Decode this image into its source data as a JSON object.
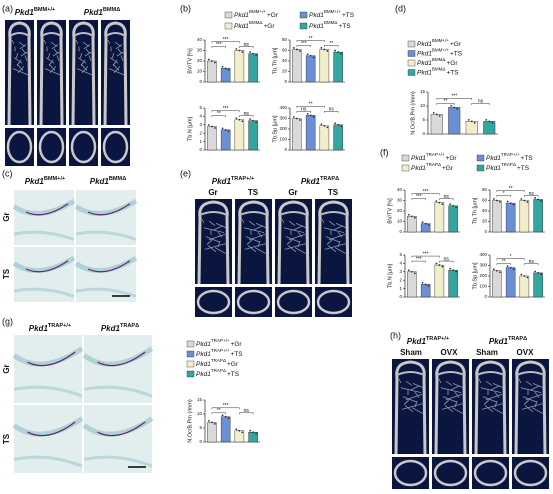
{
  "panels": {
    "a": {
      "label": "(a)",
      "headers": [
        {
          "gene": "Pkd1",
          "sup": "BMM+/+"
        },
        {
          "gene": "Pkd1",
          "sup": "BMMΔ"
        }
      ]
    },
    "b": {
      "label": "(b)",
      "legend": [
        {
          "gene": "Pkd1",
          "sup": "BMM+/+",
          "suffix": "+Gr"
        },
        {
          "gene": "Pkd1",
          "sup": "BMM+/+",
          "suffix": "+TS"
        },
        {
          "gene": "Pkd1",
          "sup": "BMMΔ",
          "suffix": "+Gr"
        },
        {
          "gene": "Pkd1",
          "sup": "BMMΔ",
          "suffix": "+TS"
        }
      ]
    },
    "c": {
      "label": "(c)",
      "headers": [
        {
          "gene": "Pkd1",
          "sup": "BMM+/+"
        },
        {
          "gene": "Pkd1",
          "sup": "BMMΔ"
        }
      ],
      "rows": [
        "Gr",
        "TS"
      ]
    },
    "d": {
      "label": "(d)",
      "legend": [
        {
          "gene": "Pkd1",
          "sup": "BMM+/+",
          "suffix": "+Gr"
        },
        {
          "gene": "Pkd1",
          "sup": "BMM+/+",
          "suffix": "+TS"
        },
        {
          "gene": "Pkd1",
          "sup": "BMMΔ",
          "suffix": "+Gr"
        },
        {
          "gene": "Pkd1",
          "sup": "BMMΔ",
          "suffix": "+TS"
        }
      ]
    },
    "e": {
      "label": "(e)",
      "headers": [
        {
          "gene": "Pkd1",
          "sup": "TRAP+/+"
        },
        {
          "gene": "Pkd1",
          "sup": "TRAPΔ"
        }
      ],
      "columns": [
        "Gr",
        "TS",
        "Gr",
        "TS"
      ]
    },
    "f": {
      "label": "(f)",
      "legend": [
        {
          "gene": "Pkd1",
          "sup": "TRAP+/+",
          "suffix": "+Gr"
        },
        {
          "gene": "Pkd1",
          "sup": "TRAP+/+",
          "suffix": "+TS"
        },
        {
          "gene": "Pkd1",
          "sup": "TRAPΔ",
          "suffix": "+Gr"
        },
        {
          "gene": "Pkd1",
          "sup": "TRAPΔ",
          "suffix": "+TS"
        }
      ]
    },
    "g": {
      "label": "(g)",
      "headers": [
        {
          "gene": "Pkd1",
          "sup": "TRAP+/+"
        },
        {
          "gene": "Pkd1",
          "sup": "TRAPΔ"
        }
      ],
      "rows": [
        "Gr",
        "TS"
      ],
      "legend": [
        {
          "gene": "Pkd1",
          "sup": "TRAP+/+",
          "suffix": "+Gr"
        },
        {
          "gene": "Pkd1",
          "sup": "TRAP+/+",
          "suffix": "+TS"
        },
        {
          "gene": "Pkd1",
          "sup": "TRAPΔ",
          "suffix": "+Gr"
        },
        {
          "gene": "Pkd1",
          "sup": "TRAPΔ",
          "suffix": "+TS"
        }
      ]
    },
    "h": {
      "label": "(h)",
      "headers": [
        {
          "gene": "Pkd1",
          "sup": "TRAP+/+"
        },
        {
          "gene": "Pkd1",
          "sup": "TRAPΔ"
        }
      ],
      "columns": [
        "Sham",
        "OVX",
        "Sham",
        "OVX"
      ]
    }
  },
  "chart_data": [
    {
      "type": "bar",
      "ylabel": "BV/TV [%]",
      "values": [
        20,
        13,
        30,
        27
      ],
      "colors": [
        "#d9d9d9",
        "#6a8fd4",
        "#f2eecb",
        "#33a6a0"
      ],
      "ylim": [
        0,
        40
      ],
      "yticks": [
        0,
        10,
        20,
        30,
        40
      ],
      "annotations": [
        "***",
        "ns",
        "***"
      ]
    },
    {
      "type": "bar",
      "ylabel": "Tb.Th [µm]",
      "values": [
        62,
        50,
        62,
        57
      ],
      "colors": [
        "#d9d9d9",
        "#6a8fd4",
        "#f2eecb",
        "#33a6a0"
      ],
      "ylim": [
        0,
        80
      ],
      "yticks": [
        0,
        20,
        40,
        60,
        80
      ],
      "annotations": [
        "***",
        "**",
        "**"
      ]
    },
    {
      "type": "bar",
      "ylabel": "Tb.N [µm]",
      "values": [
        2.8,
        2.4,
        3.6,
        3.5
      ],
      "colors": [
        "#d9d9d9",
        "#6a8fd4",
        "#f2eecb",
        "#33a6a0"
      ],
      "ylim": [
        0,
        5
      ],
      "yticks": [
        0,
        1,
        2,
        3,
        4,
        5
      ],
      "annotations": [
        "**",
        "ns",
        "***"
      ]
    },
    {
      "type": "bar",
      "ylabel": "Tb.Sp [µm]",
      "values": [
        300,
        330,
        230,
        240
      ],
      "colors": [
        "#d9d9d9",
        "#6a8fd4",
        "#f2eecb",
        "#33a6a0"
      ],
      "ylim": [
        0,
        400
      ],
      "yticks": [
        0,
        100,
        200,
        300,
        400
      ],
      "annotations": [
        "ns",
        "ns",
        "**"
      ]
    },
    {
      "type": "bar",
      "ylabel": "N.Oc/B.Pm (/mm)",
      "values": [
        7,
        9.5,
        4.5,
        4.5
      ],
      "colors": [
        "#d9d9d9",
        "#6a8fd4",
        "#f2eecb",
        "#33a6a0"
      ],
      "ylim": [
        0,
        15
      ],
      "yticks": [
        0,
        5,
        10,
        15
      ],
      "annotations": [
        "**",
        "ns",
        "***"
      ]
    },
    {
      "type": "bar",
      "ylabel": "BV/TV [%]",
      "values": [
        15,
        8,
        28,
        25
      ],
      "colors": [
        "#d9d9d9",
        "#6a8fd4",
        "#f2eecb",
        "#33a6a0"
      ],
      "ylim": [
        0,
        40
      ],
      "yticks": [
        0,
        10,
        20,
        30,
        40
      ],
      "annotations": [
        "***",
        "ns",
        "***"
      ]
    },
    {
      "type": "bar",
      "ylabel": "Tb.Th [µm]",
      "values": [
        60,
        55,
        60,
        62
      ],
      "colors": [
        "#d9d9d9",
        "#6a8fd4",
        "#f2eecb",
        "#33a6a0"
      ],
      "ylim": [
        0,
        80
      ],
      "yticks": [
        0,
        20,
        40,
        60,
        80
      ],
      "annotations": [
        "*",
        "ns",
        "**"
      ]
    },
    {
      "type": "bar",
      "ylabel": "Tb.N [µm]",
      "values": [
        3,
        1.5,
        3.8,
        3.2
      ],
      "colors": [
        "#d9d9d9",
        "#6a8fd4",
        "#f2eecb",
        "#33a6a0"
      ],
      "ylim": [
        0,
        5
      ],
      "yticks": [
        0,
        1,
        2,
        3,
        4,
        5
      ],
      "annotations": [
        "***",
        "ns",
        "***"
      ]
    },
    {
      "type": "bar",
      "ylabel": "Tb.Sp [µm]",
      "values": [
        250,
        280,
        200,
        230
      ],
      "colors": [
        "#d9d9d9",
        "#6a8fd4",
        "#f2eecb",
        "#33a6a0"
      ],
      "ylim": [
        0,
        400
      ],
      "yticks": [
        0,
        100,
        200,
        300,
        400
      ],
      "annotations": [
        "**",
        "ns",
        "*"
      ]
    },
    {
      "type": "bar",
      "ylabel": "N.Oc/B.Pm (/mm)",
      "values": [
        7,
        9,
        4,
        3.5
      ],
      "colors": [
        "#d9d9d9",
        "#6a8fd4",
        "#f2eecb",
        "#33a6a0"
      ],
      "ylim": [
        0,
        15
      ],
      "yticks": [
        0,
        5,
        10,
        15
      ],
      "annotations": [
        "**",
        "ns",
        "***"
      ]
    }
  ]
}
